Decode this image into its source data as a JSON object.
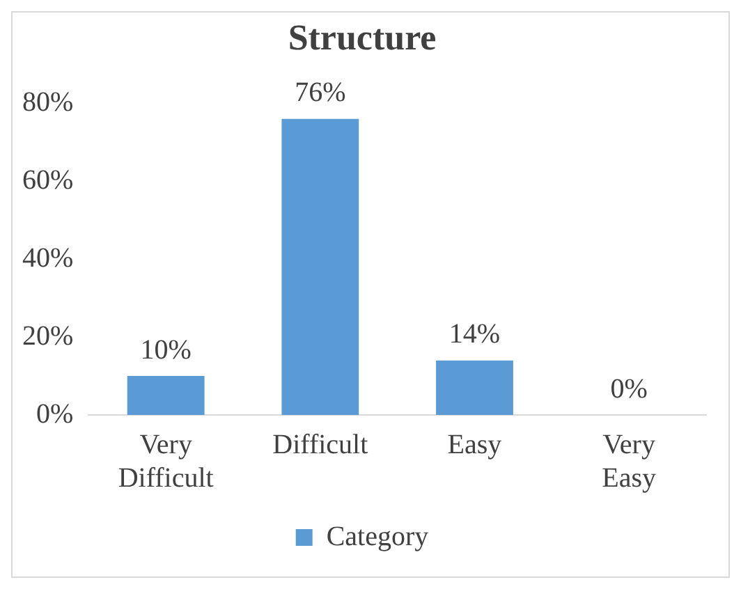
{
  "chart_data": {
    "type": "bar",
    "title": "Structure",
    "categories": [
      "Very Difficult",
      "Difficult",
      "Easy",
      "Very Easy"
    ],
    "series": [
      {
        "name": "Category",
        "color": "#5b9bd5",
        "values": [
          10,
          76,
          14,
          0
        ],
        "value_labels": [
          "10%",
          "76%",
          "14%",
          "0%"
        ]
      }
    ],
    "ylim": [
      0,
      80
    ],
    "yticks": [
      {
        "value": 0,
        "label": "0%"
      },
      {
        "value": 20,
        "label": "20%"
      },
      {
        "value": 40,
        "label": "40%"
      },
      {
        "value": 60,
        "label": "60%"
      },
      {
        "value": 80,
        "label": "80%"
      }
    ],
    "grid": false,
    "legend": "bottom"
  }
}
